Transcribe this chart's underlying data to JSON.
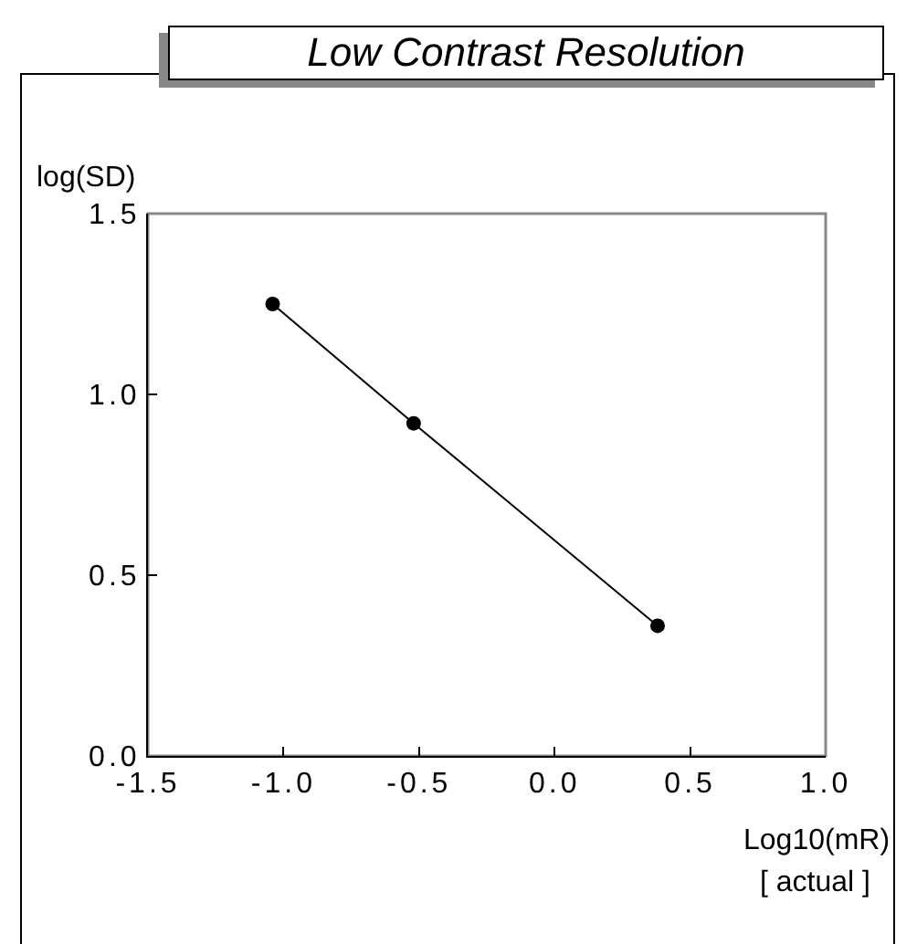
{
  "chart_data": {
    "type": "line",
    "title": "Low Contrast Resolution",
    "xlabel": "Log10(mR)",
    "ylabel": "log(SD)",
    "annotations": [
      "[ actual ]"
    ],
    "x": [
      -1.04,
      -0.52,
      0.38
    ],
    "series": [
      {
        "color": "#000000",
        "values": [
          1.25,
          0.92,
          0.36
        ]
      }
    ],
    "xlim": [
      -1.5,
      1.0
    ],
    "xticks": [
      {
        "value": -1.5,
        "label": "-1.5"
      },
      {
        "value": -1.0,
        "label": "-1.0"
      },
      {
        "value": -0.5,
        "label": "-0.5"
      },
      {
        "value": 0.0,
        "label": "0.0"
      },
      {
        "value": 0.5,
        "label": "0.5"
      },
      {
        "value": 1.0,
        "label": "1.0"
      }
    ],
    "ylim": [
      0,
      1.5
    ],
    "yticks": [
      {
        "value": 0,
        "label": "0.0"
      },
      {
        "value": 0.5,
        "label": "0.5"
      },
      {
        "value": 1.0,
        "label": "1.0"
      },
      {
        "value": 1.5,
        "label": "1.5"
      }
    ],
    "marker": "circle",
    "line_style": "solid"
  }
}
